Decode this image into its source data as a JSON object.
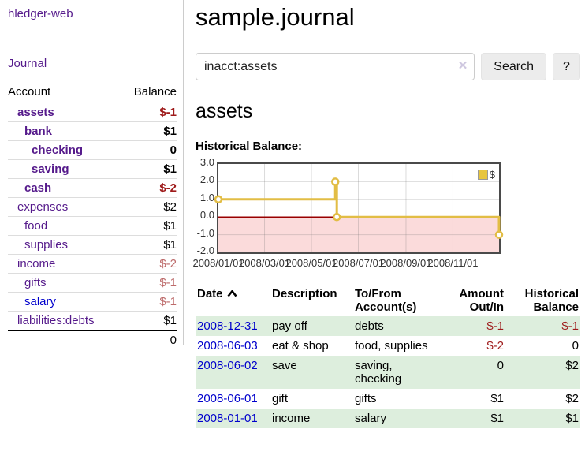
{
  "sidebar": {
    "app_title": "hledger-web",
    "nav": {
      "journal": "Journal"
    },
    "accounts": {
      "headers": {
        "account": "Account",
        "balance": "Balance"
      },
      "rows": [
        {
          "name": "assets",
          "balance": "$-1"
        },
        {
          "name": "bank",
          "balance": "$1"
        },
        {
          "name": "checking",
          "balance": "0"
        },
        {
          "name": "saving",
          "balance": "$1"
        },
        {
          "name": "cash",
          "balance": "$-2"
        },
        {
          "name": "expenses",
          "balance": "$2"
        },
        {
          "name": "food",
          "balance": "$1"
        },
        {
          "name": "supplies",
          "balance": "$1"
        },
        {
          "name": "income",
          "balance": "$-2"
        },
        {
          "name": "gifts",
          "balance": "$-1"
        },
        {
          "name": "salary",
          "balance": "$-1"
        },
        {
          "name": "liabilities:debts",
          "balance": "$1"
        }
      ],
      "total": "0"
    }
  },
  "main": {
    "title": "sample.journal",
    "search": {
      "value": "inacct:assets",
      "clear_icon": "✕",
      "search_button": "Search",
      "help_button": "?"
    },
    "account_heading": "assets",
    "section_label": "Historical Balance:"
  },
  "chart_data": {
    "type": "line",
    "step": true,
    "title": "Historical Balance:",
    "xrange": [
      "2008-01-01",
      "2008-12-31"
    ],
    "ylim": [
      -2.0,
      3.0
    ],
    "yticks": [
      "3.0",
      "2.0",
      "1.0",
      "0.0",
      "-1.0",
      "-2.0"
    ],
    "xticks": [
      "2008/01/01",
      "2008/03/01",
      "2008/05/01",
      "2008/07/01",
      "2008/09/01",
      "2008/11/01"
    ],
    "series": [
      {
        "name": "$",
        "color": "#e2bd45",
        "points": [
          [
            "2008-01-01",
            1
          ],
          [
            "2008-06-01",
            2
          ],
          [
            "2008-06-03",
            0
          ],
          [
            "2008-12-31",
            -1
          ]
        ]
      }
    ],
    "legend": {
      "label": "$",
      "position": "top-right",
      "swatch_color": "#e7c53e"
    },
    "negative_fill": "#fbdbdb",
    "zero_line_color": "#990000",
    "grid": true
  },
  "register": {
    "headers": {
      "date": "Date",
      "sort_icon": "chevron-up",
      "description": "Description",
      "accounts": "To/From Account(s)",
      "amount": "Amount Out/In",
      "balance": "Historical Balance"
    },
    "rows": [
      {
        "date": "2008-12-31",
        "description": "pay off",
        "accounts": "debts",
        "amount": "$-1",
        "balance": "$-1"
      },
      {
        "date": "2008-06-03",
        "description": "eat & shop",
        "accounts": "food, supplies",
        "amount": "$-2",
        "balance": "0"
      },
      {
        "date": "2008-06-02",
        "description": "save",
        "accounts": "saving, checking",
        "amount": "0",
        "balance": "$2"
      },
      {
        "date": "2008-06-01",
        "description": "gift",
        "accounts": "gifts",
        "amount": "$1",
        "balance": "$2"
      },
      {
        "date": "2008-01-01",
        "description": "income",
        "accounts": "salary",
        "amount": "$1",
        "balance": "$1"
      }
    ]
  },
  "colors": {
    "link_purple": "#551a8b",
    "link_blue": "#0000cc",
    "negative_strong": "#9e1a1a",
    "negative_soft": "#bd6b6b",
    "row_stripe_green": "#ddeedd",
    "accent_gold": "#e2bd45"
  }
}
